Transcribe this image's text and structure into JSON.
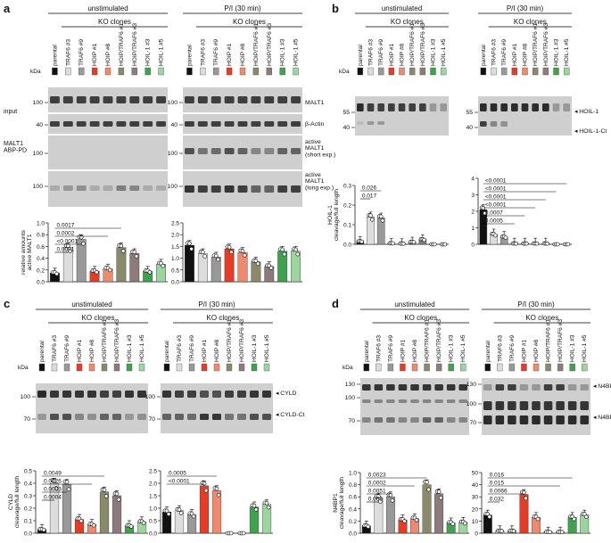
{
  "colors": {
    "parental": "#111111",
    "traf6": "#dddddd",
    "traf6b": "#bbbbbb",
    "hoip": "#e63b25",
    "hoip_light": "#f4a28c",
    "hoip_traf6": "#8a8a6a",
    "hoip_traf6b": "#8d7b7b",
    "hoil": "#3fa34d",
    "hoil_light": "#9cd69f",
    "blot_bg": "#cfcfcf",
    "blot_band": "#1a1a1a"
  },
  "lanes": [
    "parental",
    "TRAF6 #3",
    "TRAF6 #9",
    "HOIP #1",
    "HOIP #8",
    "HOIP/TRAF6 #1",
    "HOIP/TRAF6 #3",
    "HOIL-1 #3",
    "HOIL-1 #5"
  ],
  "lane_colors": [
    "#111111",
    "#dddddd",
    "#999999",
    "#e63b25",
    "#f08a6e",
    "#8a8a6a",
    "#8d7b7b",
    "#3fa34d",
    "#9cd69f"
  ],
  "common": {
    "unstimulated": "unstimulated",
    "stimulated": "P/I (30 min)",
    "ko": "KO clones",
    "kda": "kDa"
  },
  "panel_a": {
    "letter": "a",
    "input_label": "input",
    "abp_label": "MALT1\nABP-PD",
    "band_labels": [
      "MALT1",
      "β-Actin",
      "active\nMALT1\n(short exp.)",
      "active\nMALT1\n(long exp.)"
    ],
    "markers": [
      "100",
      "40",
      "100",
      "100"
    ],
    "ylabel": "relative amounts\nactive MALT1",
    "yticks_left": [
      "0.0",
      "0.2",
      "0.4",
      "0.6",
      "0.8",
      "1.0"
    ],
    "yticks_right": [
      "0.0",
      "0.5",
      "1.0",
      "1.5",
      "2.0",
      "2.5"
    ],
    "pvalues": [
      "0.0001",
      "<0.0001",
      "0.0002",
      "0.0017"
    ],
    "chart_data": [
      {
        "type": "bar",
        "title": "unstimulated",
        "ylabel": "relative amounts active MALT1",
        "ylim": [
          0,
          1.0
        ],
        "categories": [
          "parental",
          "TRAF6 #3",
          "TRAF6 #9",
          "HOIP #1",
          "HOIP #8",
          "HOIP/TRAF6 #1",
          "HOIP/TRAF6 #3",
          "HOIL-1 #3",
          "HOIL-1 #5"
        ],
        "values": [
          0.15,
          0.58,
          0.72,
          0.18,
          0.22,
          0.58,
          0.48,
          0.18,
          0.3
        ]
      },
      {
        "type": "bar",
        "title": "P/I (30 min)",
        "ylim": [
          0,
          2.5
        ],
        "categories": [
          "parental",
          "TRAF6 #3",
          "TRAF6 #9",
          "HOIP #1",
          "HOIP #8",
          "HOIP/TRAF6 #1",
          "HOIP/TRAF6 #3",
          "HOIL-1 #3",
          "HOIL-1 #5"
        ],
        "values": [
          1.55,
          1.2,
          1.05,
          1.4,
          1.25,
          0.85,
          0.65,
          1.3,
          1.3
        ]
      }
    ]
  },
  "panel_b": {
    "letter": "b",
    "band_labels": [
      "HOIL-1",
      "HOIL-1-Ct"
    ],
    "markers": [
      "55",
      "40"
    ],
    "ylabel": "HOIL-1\ncleavage/full length",
    "yticks_left": [
      "0.0",
      "0.1",
      "0.2",
      "0.3"
    ],
    "yticks_right": [
      "0",
      "1",
      "2",
      "3",
      "4"
    ],
    "pvalues_left": [
      "0.017",
      "0.026"
    ],
    "pvalues_right": [
      "<0.0001",
      "<0.0001",
      "<0.0001",
      "<0.0001",
      "0.0007",
      "0.0005"
    ],
    "chart_data": [
      {
        "type": "bar",
        "title": "unstimulated",
        "ylabel": "HOIL-1 cleavage/full length",
        "ylim": [
          0,
          0.3
        ],
        "categories": [
          "parental",
          "TRAF6 #3",
          "TRAF6 #9",
          "HOIP #1",
          "HOIP #8",
          "HOIP/TRAF6 #1",
          "HOIP/TRAF6 #3",
          "HOIL-1 #3",
          "HOIL-1 #5"
        ],
        "values": [
          0.015,
          0.14,
          0.135,
          0.005,
          0.004,
          0.012,
          0.025,
          0.0,
          0.0
        ]
      },
      {
        "type": "bar",
        "title": "P/I (30 min)",
        "ylim": [
          0,
          4
        ],
        "categories": [
          "parental",
          "TRAF6 #3",
          "TRAF6 #9",
          "HOIP #1",
          "HOIP #8",
          "HOIP/TRAF6 #1",
          "HOIP/TRAF6 #3",
          "HOIL-1 #3",
          "HOIL-1 #5"
        ],
        "values": [
          2.1,
          0.6,
          0.45,
          0.05,
          0.05,
          0.05,
          0.05,
          0.0,
          0.0
        ]
      }
    ]
  },
  "panel_c": {
    "letter": "c",
    "band_labels": [
      "CYLD",
      "CYLD-Ct"
    ],
    "markers": [
      "100",
      "70"
    ],
    "ylabel": "CYLD\ncleavage/full length",
    "yticks_left": [
      "0.0",
      "0.1",
      "0.2",
      "0.3",
      "0.4",
      "0.5"
    ],
    "yticks_right": [
      "0.0",
      "0.5",
      "1.0",
      "1.5",
      "2.0",
      "2.5"
    ],
    "pvalues_left": [
      "0.0004",
      "0.0003",
      "0.0026",
      "0.0049"
    ],
    "pvalues_right": [
      "<0.0001",
      "0.0005"
    ],
    "chart_data": [
      {
        "type": "bar",
        "title": "unstimulated",
        "ylabel": "CYLD cleavage/full length",
        "ylim": [
          0,
          0.5
        ],
        "categories": [
          "parental",
          "TRAF6 #3",
          "TRAF6 #9",
          "HOIP #1",
          "HOIP #8",
          "HOIP/TRAF6 #1",
          "HOIP/TRAF6 #3",
          "HOIL-1 #3",
          "HOIL-1 #5"
        ],
        "values": [
          0.03,
          0.4,
          0.39,
          0.11,
          0.07,
          0.33,
          0.3,
          0.06,
          0.09
        ]
      },
      {
        "type": "bar",
        "title": "P/I (30 min)",
        "ylim": [
          0,
          2.5
        ],
        "categories": [
          "parental",
          "TRAF6 #3",
          "TRAF6 #9",
          "HOIP #1",
          "HOIP #8",
          "HOIP/TRAF6 #1",
          "HOIP/TRAF6 #3",
          "HOIL-1 #3",
          "HOIL-1 #5"
        ],
        "values": [
          0.85,
          0.9,
          0.75,
          1.9,
          1.7,
          0.0,
          0.0,
          1.05,
          1.15
        ]
      }
    ]
  },
  "panel_d": {
    "letter": "d",
    "band_labels": [
      "N4BP1",
      "N4BP1-Nt"
    ],
    "markers": [
      "130",
      "100",
      "70",
      "130",
      "100",
      "70"
    ],
    "ylabel": "N4BP1\ncleavage/full length",
    "yticks_left": [
      "0.0",
      "0.2",
      "0.4",
      "0.6",
      "0.8",
      "1.0"
    ],
    "yticks_right": [
      "0",
      "10",
      "20",
      "30",
      "40",
      "50"
    ],
    "pvalues_left": [
      "0.009",
      "0.0051",
      "0.0002",
      "0.0023"
    ],
    "pvalues_right": [
      "0.032",
      "0.0066",
      "0.015",
      "0.016"
    ],
    "chart_data": [
      {
        "type": "bar",
        "title": "unstimulated",
        "ylabel": "N4BP1 cleavage/full length",
        "ylim": [
          0,
          1.0
        ],
        "categories": [
          "parental",
          "TRAF6 #3",
          "TRAF6 #9",
          "HOIP #1",
          "HOIP #8",
          "HOIP/TRAF6 #1",
          "HOIP/TRAF6 #3",
          "HOIL-1 #3",
          "HOIL-1 #5"
        ],
        "values": [
          0.12,
          0.58,
          0.6,
          0.22,
          0.24,
          0.8,
          0.65,
          0.17,
          0.18
        ]
      },
      {
        "type": "bar",
        "title": "P/I (30 min)",
        "ylim": [
          0,
          50
        ],
        "categories": [
          "parental",
          "TRAF6 #3",
          "TRAF6 #9",
          "HOIP #1",
          "HOIP #8",
          "HOIP/TRAF6 #1",
          "HOIP/TRAF6 #3",
          "HOIL-1 #3",
          "HOIL-1 #5"
        ],
        "values": [
          15,
          2,
          2,
          32,
          13,
          1,
          1,
          13,
          15
        ]
      }
    ]
  }
}
